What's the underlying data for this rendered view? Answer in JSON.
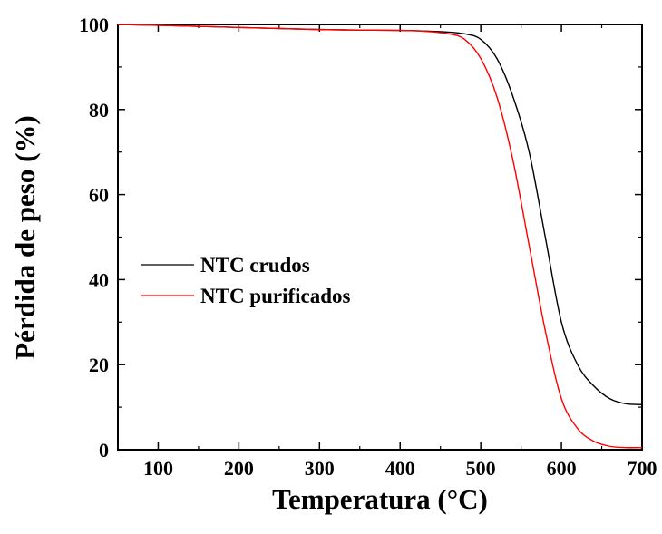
{
  "chart_data": {
    "type": "line",
    "title": "",
    "xlabel": "Temperatura (°C)",
    "ylabel": "Pérdida de peso (%)",
    "xlim": [
      50,
      700
    ],
    "ylim": [
      0,
      100
    ],
    "xticks": [
      100,
      200,
      300,
      400,
      500,
      600,
      700
    ],
    "xtick_labels": [
      "100",
      "200",
      "300",
      "400",
      "500",
      "600",
      "700"
    ],
    "yticks": [
      0,
      20,
      40,
      60,
      80,
      100
    ],
    "ytick_labels": [
      "0",
      "20",
      "40",
      "60",
      "80",
      "100"
    ],
    "grid": false,
    "legend_position": "center-left",
    "series": [
      {
        "name": "NTC crudos",
        "color": "#000000",
        "x": [
          50,
          100,
          200,
          300,
          400,
          450,
          480,
          500,
          520,
          540,
          560,
          580,
          600,
          620,
          640,
          660,
          680,
          700
        ],
        "y": [
          100,
          99.8,
          99.3,
          98.8,
          98.6,
          98.3,
          97.8,
          96.5,
          92,
          83,
          70,
          50,
          30,
          20,
          15,
          12,
          10.8,
          10.6
        ]
      },
      {
        "name": "NTC purificados",
        "color": "#ff0000",
        "x": [
          50,
          100,
          200,
          300,
          400,
          430,
          460,
          480,
          500,
          520,
          540,
          560,
          580,
          600,
          620,
          640,
          660,
          680,
          700
        ],
        "y": [
          100,
          99.8,
          99.3,
          98.8,
          98.6,
          98.4,
          97.8,
          96.5,
          92,
          83,
          68,
          48,
          28,
          12,
          5,
          2,
          0.8,
          0.5,
          0.5
        ]
      }
    ]
  }
}
